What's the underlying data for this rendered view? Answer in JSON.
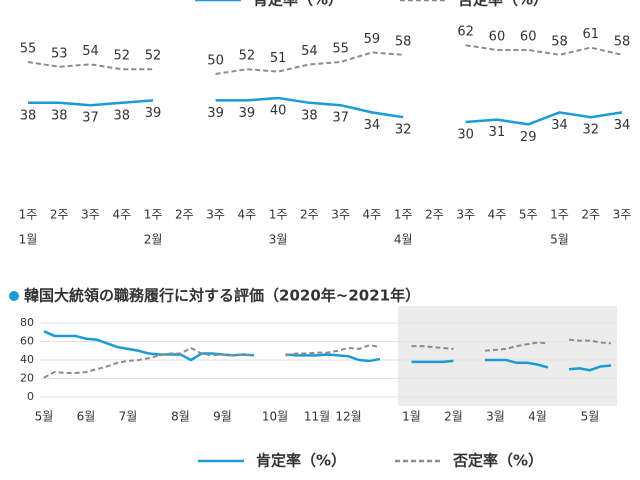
{
  "chart_data": [
    {
      "type": "line",
      "categories": [
        "1주",
        "2주",
        "3주",
        "4주",
        "1주",
        "2주",
        "3주",
        "4주",
        "1주",
        "2주",
        "3주",
        "4주",
        "1주",
        "2주",
        "3주",
        "4주",
        "5주",
        "1주",
        "2주",
        "3주"
      ],
      "month_labels": [
        "1월",
        null,
        null,
        null,
        "2월",
        null,
        null,
        null,
        "3월",
        null,
        null,
        null,
        "4월",
        null,
        null,
        null,
        null,
        "5월",
        null,
        null
      ],
      "ylim": [
        20,
        70
      ],
      "series": [
        {
          "name": "肯定率（%）",
          "color": "#1a9bd7",
          "values": [
            38,
            38,
            37,
            38,
            39,
            null,
            39,
            39,
            40,
            38,
            37,
            34,
            32,
            null,
            30,
            31,
            29,
            34,
            32,
            34
          ]
        },
        {
          "name": "否定率（%）",
          "color": "#8c8c8c",
          "dashed": true,
          "values": [
            55,
            53,
            54,
            52,
            52,
            null,
            50,
            52,
            51,
            54,
            55,
            59,
            58,
            null,
            62,
            60,
            60,
            58,
            61,
            58
          ]
        }
      ]
    },
    {
      "type": "line",
      "title": "韓国大統領の職務履行に対する評価（2020年~2021年）",
      "categories": [
        "5월",
        null,
        null,
        null,
        "6월",
        null,
        null,
        null,
        "7월",
        null,
        null,
        null,
        null,
        "8월",
        null,
        null,
        null,
        "9월",
        null,
        null,
        null,
        null,
        "10월",
        null,
        null,
        null,
        "11월",
        null,
        null,
        "12월",
        null,
        null,
        null,
        null,
        null,
        "1월",
        null,
        null,
        null,
        "2월",
        null,
        null,
        null,
        "3월",
        null,
        null,
        null,
        "4월",
        null,
        null,
        null,
        null,
        "5월",
        null,
        null
      ],
      "ylim": [
        0,
        80
      ],
      "yticks": [
        0,
        20,
        40,
        60,
        80
      ],
      "grid": true,
      "series": [
        {
          "name": "肯定率（%）",
          "color": "#1a9bd7",
          "values": [
            71,
            66,
            66,
            66,
            63,
            62,
            58,
            54,
            52,
            50,
            47,
            46,
            46,
            46,
            40,
            47,
            47,
            46,
            45,
            46,
            45,
            null,
            null,
            46,
            45,
            45,
            45,
            46,
            45,
            44,
            40,
            39,
            41,
            null,
            null,
            38,
            38,
            38,
            38,
            39,
            null,
            null,
            40,
            40,
            40,
            37,
            37,
            35,
            32,
            null,
            30,
            31,
            29,
            33,
            34
          ]
        },
        {
          "name": "否定率（%）",
          "color": "#8c8c8c",
          "dashed": true,
          "values": [
            21,
            27,
            26,
            26,
            27,
            30,
            33,
            37,
            39,
            40,
            42,
            45,
            47,
            47,
            53,
            47,
            45,
            46,
            45,
            46,
            46,
            null,
            null,
            45,
            47,
            47,
            48,
            48,
            50,
            53,
            52,
            56,
            54,
            null,
            null,
            55,
            55,
            54,
            53,
            52,
            null,
            null,
            50,
            51,
            52,
            55,
            57,
            59,
            58,
            null,
            62,
            61,
            61,
            59,
            58
          ]
        }
      ]
    }
  ]
}
